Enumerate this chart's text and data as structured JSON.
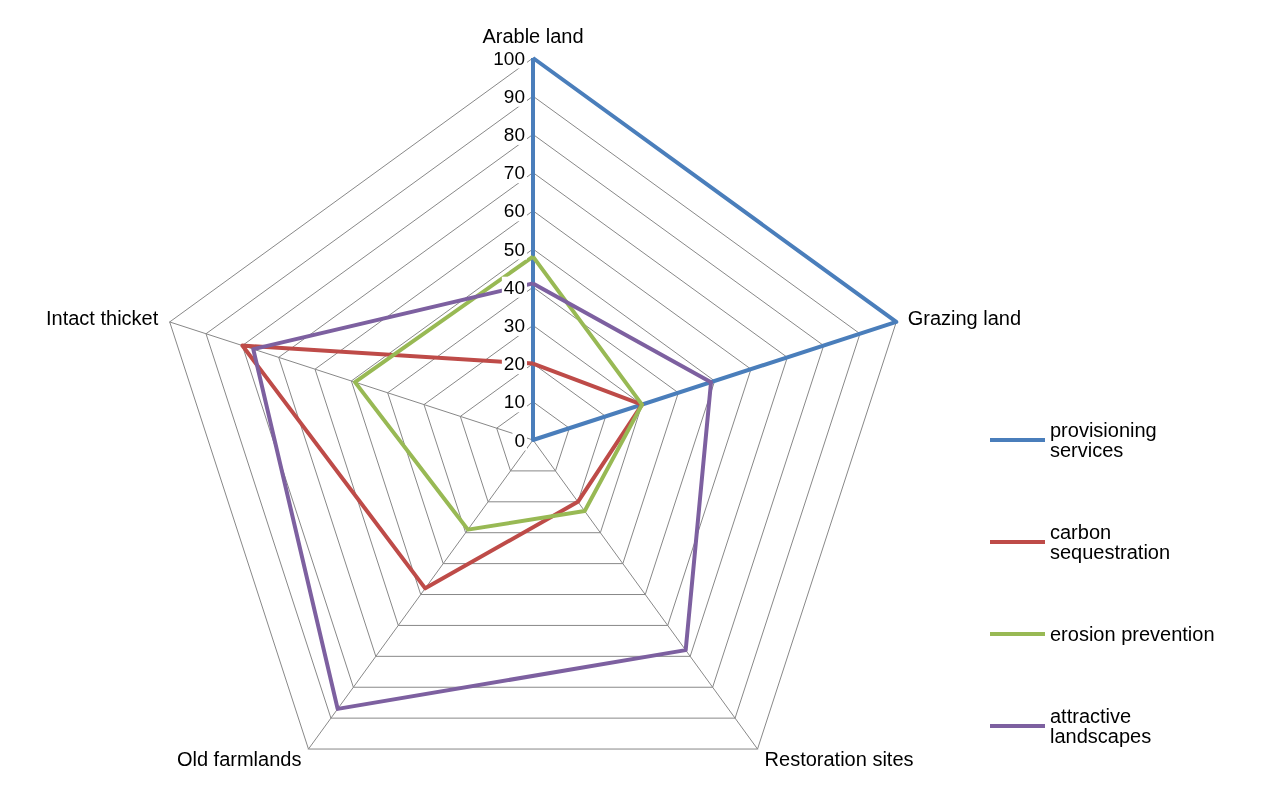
{
  "chart_data": {
    "type": "radar",
    "categories": [
      "Arable land",
      "Grazing land",
      "Restoration sites",
      "Old farmlands",
      "Intact thicket"
    ],
    "series": [
      {
        "name": "provisioning services",
        "color": "#4a7ebb",
        "values": [
          100,
          100,
          0,
          0,
          0
        ]
      },
      {
        "name": "carbon sequestration",
        "color": "#be4b48",
        "values": [
          20,
          30,
          20,
          48,
          80
        ]
      },
      {
        "name": "erosion prevention",
        "color": "#98b954",
        "values": [
          48,
          30,
          23,
          29,
          49
        ]
      },
      {
        "name": "attractive landscapes",
        "color": "#7d60a0",
        "values": [
          41,
          49,
          68,
          87,
          77
        ]
      }
    ],
    "ylim": [
      0,
      100
    ],
    "yticks": [
      0,
      10,
      20,
      30,
      40,
      50,
      60,
      70,
      80,
      90,
      100
    ],
    "legend": "right",
    "marker": "none",
    "grid": true
  }
}
